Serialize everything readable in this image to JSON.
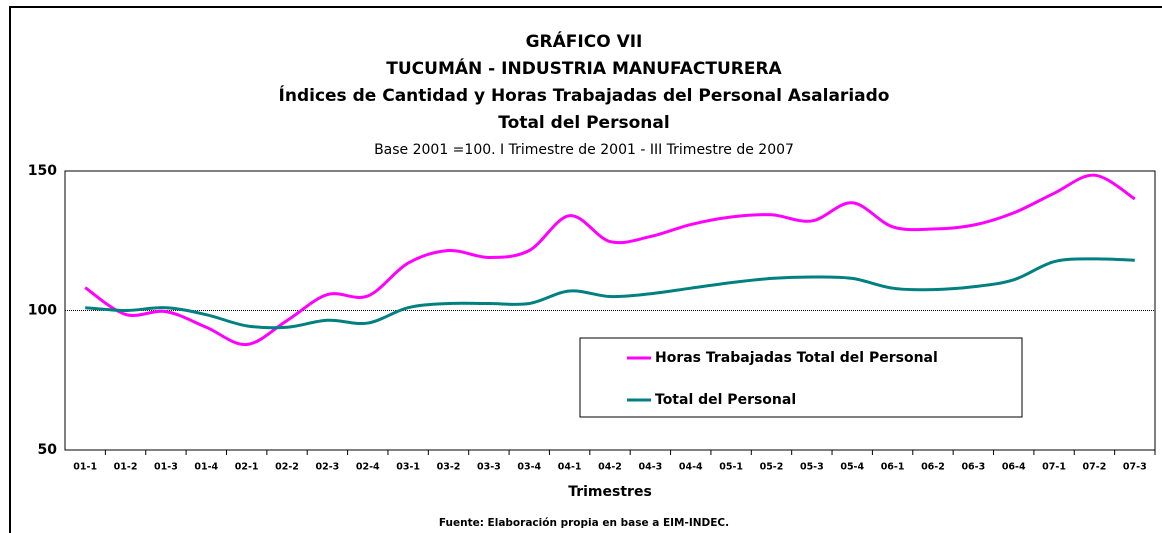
{
  "chart_data": {
    "type": "line",
    "title": "GRÁFICO VII",
    "title2": "TUCUMÁN - INDUSTRIA MANUFACTURERA",
    "title3": "Índices de Cantidad y Horas Trabajadas del Personal Asalariado",
    "title4": "Total del Personal",
    "subtitle": "Base 2001 =100. I Trimestre de 2001 - III Trimestre de 2007",
    "x_label": "Trimestres",
    "source": "Fuente: Elaboración propia en base a EIM-INDEC.",
    "categories": [
      "01-1",
      "01-2",
      "01-3",
      "01-4",
      "02-1",
      "02-2",
      "02-3",
      "02-4",
      "03-1",
      "03-2",
      "03-3",
      "03-4",
      "04-1",
      "04-2",
      "04-3",
      "04-4",
      "05-1",
      "05-2",
      "05-3",
      "05-4",
      "06-1",
      "06-2",
      "06-3",
      "06-4",
      "07-1",
      "07-2",
      "07-3"
    ],
    "series": [
      {
        "name": "Horas Trabajadas Total del Personal",
        "color": "#ff00ff",
        "values": [
          108.2,
          98.6,
          99.6,
          94,
          87.8,
          96.4,
          105.7,
          105.2,
          117,
          121.5,
          119,
          121.5,
          134,
          124.7,
          126.5,
          130.8,
          133.5,
          134.3,
          132.1,
          138.6,
          130,
          129.2,
          130.6,
          135,
          142,
          148.5,
          140
        ]
      },
      {
        "name": "Total del Personal",
        "color": "#008080",
        "values": [
          101,
          100,
          101,
          98.5,
          94.5,
          94,
          96.5,
          95.5,
          101,
          102.5,
          102.5,
          102.5,
          107,
          105,
          106,
          108,
          110,
          111.5,
          112,
          111.5,
          108,
          107.5,
          108.5,
          111,
          117.5,
          118.5,
          118
        ]
      }
    ],
    "ylim": [
      50,
      150
    ],
    "yticks": [
      50,
      100,
      150
    ],
    "grid": true
  }
}
